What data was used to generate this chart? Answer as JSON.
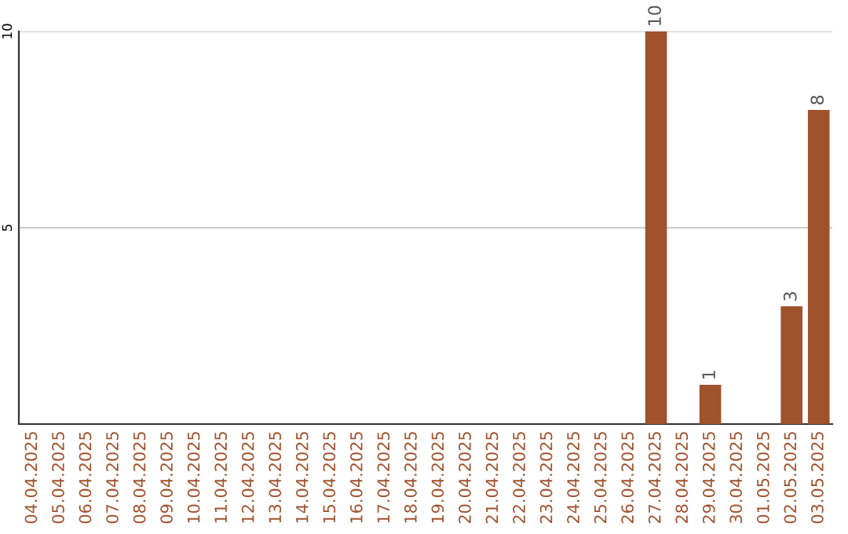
{
  "chart_data": {
    "type": "bar",
    "categories": [
      "04.04.2025",
      "05.04.2025",
      "06.04.2025",
      "07.04.2025",
      "08.04.2025",
      "09.04.2025",
      "10.04.2025",
      "11.04.2025",
      "12.04.2025",
      "13.04.2025",
      "14.04.2025",
      "15.04.2025",
      "16.04.2025",
      "17.04.2025",
      "18.04.2025",
      "19.04.2025",
      "20.04.2025",
      "21.04.2025",
      "22.04.2025",
      "23.04.2025",
      "24.04.2025",
      "25.04.2025",
      "26.04.2025",
      "27.04.2025",
      "28.04.2025",
      "29.04.2025",
      "30.04.2025",
      "01.05.2025",
      "02.05.2025",
      "03.05.2025"
    ],
    "values": [
      0,
      0,
      0,
      0,
      0,
      0,
      0,
      0,
      0,
      0,
      0,
      0,
      0,
      0,
      0,
      0,
      0,
      0,
      0,
      0,
      0,
      0,
      0,
      10,
      0,
      1,
      0,
      0,
      3,
      8
    ],
    "value_labels": [
      null,
      null,
      null,
      null,
      null,
      null,
      null,
      null,
      null,
      null,
      null,
      null,
      null,
      null,
      null,
      null,
      null,
      null,
      null,
      null,
      null,
      null,
      null,
      "10",
      null,
      "1",
      null,
      null,
      "3",
      "8"
    ],
    "color": "#a0522d",
    "ylim": [
      0,
      10
    ],
    "yticks": [
      5,
      10
    ],
    "grid": "y"
  }
}
